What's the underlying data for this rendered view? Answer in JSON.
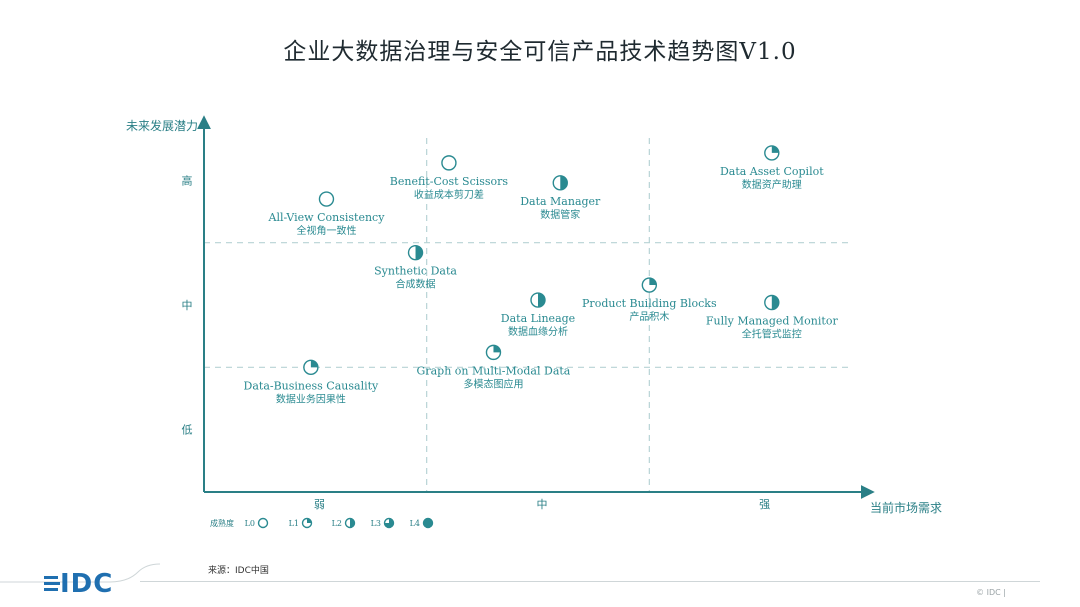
{
  "title": "企业大数据治理与安全可信产品技术趋势图V1.0",
  "source": "来源：IDC中国",
  "copyright": "© IDC |",
  "brand": {
    "logo_text": "IDC",
    "color": "#1f6fb0"
  },
  "colors": {
    "accent": "#2a8a91",
    "axis": "#2a7f86",
    "grid": "#b7d3d5",
    "label": "#2a8a91",
    "tick": "#2a7f86"
  },
  "chart_data": {
    "type": "scatter",
    "title": "企业大数据治理与安全可信产品技术趋势图V1.0",
    "xlabel": "当前市场需求",
    "ylabel": "未来发展潜力",
    "x_ticks": [
      {
        "label": "弱",
        "value": 1
      },
      {
        "label": "中",
        "value": 2
      },
      {
        "label": "强",
        "value": 3
      }
    ],
    "y_ticks": [
      {
        "label": "低",
        "value": 1
      },
      {
        "label": "中",
        "value": 2
      },
      {
        "label": "高",
        "value": 3
      }
    ],
    "xlim": [
      0.5,
      3.5
    ],
    "ylim": [
      0.5,
      3.5
    ],
    "x_dividers": [
      1.5,
      2.5
    ],
    "y_dividers": [
      1.5,
      2.5
    ],
    "legend": {
      "title": "成熟度",
      "items": [
        {
          "label": "L0",
          "fill": 0
        },
        {
          "label": "L1",
          "fill": 0.25
        },
        {
          "label": "L2",
          "fill": 0.5
        },
        {
          "label": "L3",
          "fill": 0.75
        },
        {
          "label": "L4",
          "fill": 1
        }
      ]
    },
    "points": [
      {
        "en": "All-View Consistency",
        "zh": "全视角一致性",
        "x": 1.05,
        "y": 2.85,
        "maturity": "L0",
        "fill": 0
      },
      {
        "en": "Benefit-Cost Scissors",
        "zh": "收益成本剪刀差",
        "x": 1.6,
        "y": 3.14,
        "maturity": "L0",
        "fill": 0
      },
      {
        "en": "Data Manager",
        "zh": "数据管家",
        "x": 2.1,
        "y": 2.98,
        "maturity": "L2",
        "fill": 0.5
      },
      {
        "en": "Data Asset Copilot",
        "zh": "数据资产助理",
        "x": 3.05,
        "y": 3.22,
        "maturity": "L1",
        "fill": 0.25
      },
      {
        "en": "Synthetic Data",
        "zh": "合成数据",
        "x": 1.45,
        "y": 2.42,
        "maturity": "L2",
        "fill": 0.5
      },
      {
        "en": "Product Building Blocks",
        "zh": "产品积木",
        "x": 2.5,
        "y": 2.16,
        "maturity": "L1",
        "fill": 0.25
      },
      {
        "en": "Fully Managed Monitor",
        "zh": "全托管式监控",
        "x": 3.05,
        "y": 2.02,
        "maturity": "L2",
        "fill": 0.5
      },
      {
        "en": "Data Lineage",
        "zh": "数据血缘分析",
        "x": 2.0,
        "y": 2.04,
        "maturity": "L2",
        "fill": 0.5
      },
      {
        "en": "Graph on Multi-Modal Data",
        "zh": "多模态图应用",
        "x": 1.8,
        "y": 1.62,
        "maturity": "L1",
        "fill": 0.25
      },
      {
        "en": "Data-Business Causality",
        "zh": "数据业务因果性",
        "x": 0.98,
        "y": 1.5,
        "maturity": "L1",
        "fill": 0.25
      }
    ]
  }
}
